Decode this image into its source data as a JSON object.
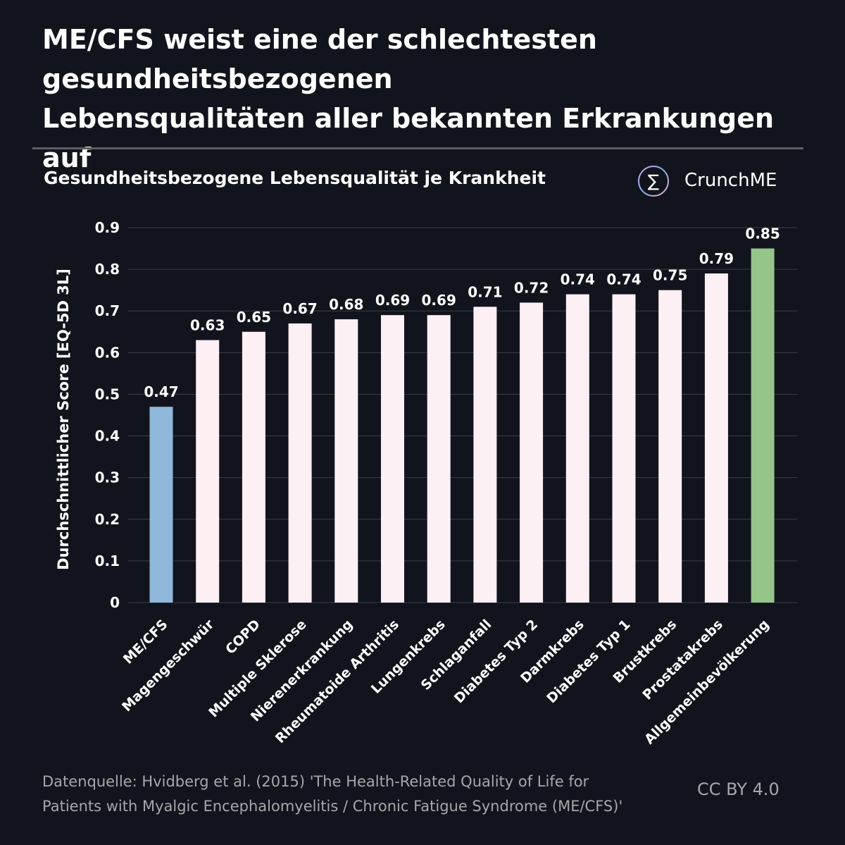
{
  "title_lines": [
    "ME/CFS weist eine der schlechtesten",
    "gesundheitsbezogenen",
    "Lebensqualitäten aller bekannten Erkrankungen auf"
  ],
  "subtitle": "Gesundheitsbezogene Lebensqualität je Krankheit",
  "logo": {
    "text": "CrunchME",
    "symbol": "∑"
  },
  "footer": {
    "source_lines": [
      "Datenquelle: Hvidberg et al. (2015) 'The Health-Related Quality of Life for",
      "Patients with Myalgic Encephalomyelitis / Chronic Fatigue Syndrome (ME/CFS)'"
    ],
    "license": "CC BY 4.0"
  },
  "colors": {
    "background": "#12141d",
    "highlight_mecfs": "#8fb8da",
    "highlight_general": "#96c58a",
    "default_bar": "#fdf0f4",
    "gridline": "#3b3d47"
  },
  "chart_data": {
    "type": "bar",
    "title": "Gesundheitsbezogene Lebensqualität je Krankheit",
    "xlabel": "",
    "ylabel": "Durchschnittlicher Score [EQ-5D 3L]",
    "ylim": [
      0,
      0.9
    ],
    "yticks": [
      0,
      0.1,
      0.2,
      0.3,
      0.4,
      0.5,
      0.6,
      0.7,
      0.8,
      0.9
    ],
    "ytick_labels": [
      "0",
      "0.1",
      "0.2",
      "0.3",
      "0.4",
      "0.5",
      "0.6",
      "0.7",
      "0.8",
      "0.9"
    ],
    "grid": true,
    "categories": [
      "ME/CFS",
      "Magengeschwür",
      "COPD",
      "Multiple Sklerose",
      "Nierenerkrankung",
      "Rheumatoide Arthritis",
      "Lungenkrebs",
      "Schlaganfall",
      "Diabetes Typ 2",
      "Darmkrebs",
      "Diabetes Typ 1",
      "Brustkrebs",
      "Prostatakrebs",
      "Allgemeinbevölkerung"
    ],
    "values": [
      0.47,
      0.63,
      0.65,
      0.67,
      0.68,
      0.69,
      0.69,
      0.71,
      0.72,
      0.74,
      0.74,
      0.75,
      0.79,
      0.85
    ],
    "value_labels": [
      "0.47",
      "0.63",
      "0.65",
      "0.67",
      "0.68",
      "0.69",
      "0.69",
      "0.71",
      "0.72",
      "0.74",
      "0.74",
      "0.75",
      "0.79",
      "0.85"
    ],
    "bar_colors": [
      "#8fb8da",
      "#fdf0f4",
      "#fdf0f4",
      "#fdf0f4",
      "#fdf0f4",
      "#fdf0f4",
      "#fdf0f4",
      "#fdf0f4",
      "#fdf0f4",
      "#fdf0f4",
      "#fdf0f4",
      "#fdf0f4",
      "#fdf0f4",
      "#96c58a"
    ]
  }
}
